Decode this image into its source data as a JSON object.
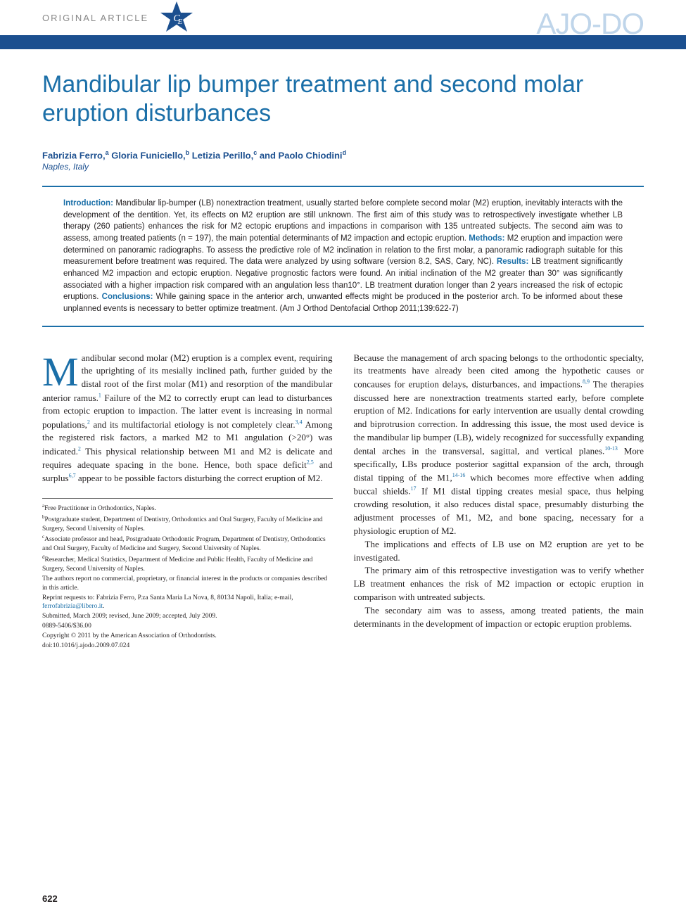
{
  "header": {
    "article_type": "ORIGINAL ARTICLE",
    "ce_badge": "CE",
    "journal": "AJO-DO"
  },
  "title": "Mandibular lip bumper treatment and second molar eruption disturbances",
  "authors_html": "Fabrizia Ferro,<sup>a</sup> Gloria Funiciello,<sup>b</sup> Letizia Perillo,<sup>c</sup> and Paolo Chiodini<sup>d</sup>",
  "location": "Naples, Italy",
  "abstract": {
    "introduction_label": "Introduction:",
    "introduction": " Mandibular lip-bumper (LB) nonextraction treatment, usually started before complete second molar (M2) eruption, inevitably interacts with the development of the dentition. Yet, its effects on M2 eruption are still unknown. The first aim of this study was to retrospectively investigate whether LB therapy (260 patients) enhances the risk for M2 ectopic eruptions and impactions in comparison with 135 untreated subjects. The second aim was to assess, among treated patients (n = 197), the main potential determinants of M2 impaction and ectopic eruption. ",
    "methods_label": "Methods:",
    "methods": " M2 eruption and impaction were determined on panoramic radiographs. To assess the predictive role of M2 inclination in relation to the first molar, a panoramic radiograph suitable for this measurement before treatment was required. The data were analyzed by using software (version 8.2, SAS, Cary, NC). ",
    "results_label": "Results:",
    "results": " LB treatment significantly enhanced M2 impaction and ectopic eruption. Negative prognostic factors were found. An initial inclination of the M2 greater than 30° was significantly associated with a higher impaction risk compared with an angulation less than10°. LB treatment duration longer than 2 years increased the risk of ectopic eruptions. ",
    "conclusions_label": "Conclusions:",
    "conclusions": " While gaining space in the anterior arch, unwanted effects might be produced in the posterior arch. To be informed about these unplanned events is necessary to better optimize treatment. (Am J Orthod Dentofacial Orthop 2011;139:622-7)"
  },
  "body": {
    "col1_p1_html": "andibular second molar (M2) eruption is a complex event, requiring the uprighting of its mesially inclined path, further guided by the distal root of the first molar (M1) and resorption of the mandibular anterior ramus.<sup>1</sup> Failure of the M2 to correctly erupt can lead to disturbances from ectopic eruption to impaction. The latter event is increasing in normal populations,<sup>2</sup> and its multifactorial etiology is not completely clear.<sup>3,4</sup> Among the registered risk factors, a marked M2 to M1 angulation (>20°) was indicated.<sup>2</sup> This physical relationship between M1 and M2 is delicate and requires adequate spacing in the bone. Hence, both space deficit<sup>2,5</sup> and surplus<sup>6,7</sup> appear to be possible factors disturbing the correct eruption of M2.",
    "col2_p1_html": "Because the management of arch spacing belongs to the orthodontic specialty, its treatments have already been cited among the hypothetic causes or concauses for eruption delays, disturbances, and impactions.<sup>8,9</sup> The therapies discussed here are nonextraction treatments started early, before complete eruption of M2. Indications for early intervention are usually dental crowding and biprotrusion correction. In addressing this issue, the most used device is the mandibular lip bumper (LB), widely recognized for successfully expanding dental arches in the transversal, sagittal, and vertical planes.<sup>10-13</sup> More specifically, LBs produce posterior sagittal expansion of the arch, through distal tipping of the M1,<sup>14-16</sup> which becomes more effective when adding buccal shields.<sup>17</sup> If M1 distal tipping creates mesial space, thus helping crowding resolution, it also reduces distal space, presumably disturbing the adjustment processes of M1, M2, and bone spacing, necessary for a physiologic eruption of M2.",
    "col2_p2": "The implications and effects of LB use on M2 eruption are yet to be investigated.",
    "col2_p3": "The primary aim of this retrospective investigation was to verify whether LB treatment enhances the risk of M2 impaction or ectopic eruption in comparison with untreated subjects.",
    "col2_p4": "The secondary aim was to assess, among treated patients, the main determinants in the development of impaction or ectopic eruption problems."
  },
  "footnotes": {
    "a": "Free Practitioner in Orthodontics, Naples.",
    "b": "Postgraduate student, Department of Dentistry, Orthodontics and Oral Surgery, Faculty of Medicine and Surgery, Second University of Naples.",
    "c": "Associate professor and head, Postgraduate Orthodontic Program, Department of Dentistry, Orthodontics and Oral Surgery, Faculty of Medicine and Surgery, Second University of Naples.",
    "d": "Researcher, Medical Statistics, Department of Medicine and Public Health, Faculty of Medicine and Surgery, Second University of Naples.",
    "disclosure": "The authors report no commercial, proprietary, or financial interest in the products or companies described in this article.",
    "reprint": "Reprint requests to: Fabrizia Ferro, P.za Santa Maria La Nova, 8, 80134 Napoli, Italia; e-mail, ",
    "reprint_email": "ferrofabrizia@libero.it",
    "submitted": "Submitted, March 2009; revised, June 2009; accepted, July 2009.",
    "issn": "0889-5406/$36.00",
    "copyright": "Copyright © 2011 by the American Association of Orthodontists.",
    "doi": "doi:10.1016/j.ajodo.2009.07.024"
  },
  "page_number": "622",
  "colors": {
    "primary_blue": "#1b6fa8",
    "dark_blue": "#1b4f8f",
    "logo_blue": "#bfd5ea",
    "text": "#231f20",
    "grey": "#888888"
  }
}
